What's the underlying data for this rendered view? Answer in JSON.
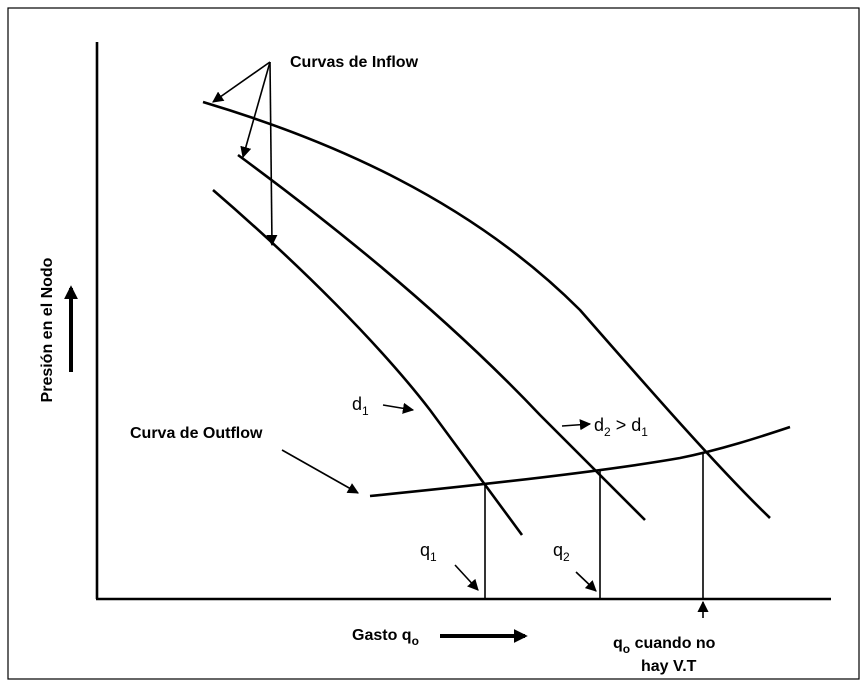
{
  "labels": {
    "inflow": "Curvas de Inflow",
    "y_axis": "Presión en el Nodo",
    "outflow": "Curva de Outflow",
    "d1": [
      "d",
      "1"
    ],
    "d2": [
      "d",
      "2",
      " > d",
      "1"
    ],
    "q1": [
      "q",
      "1"
    ],
    "q2": [
      "q",
      "2"
    ],
    "x_axis": [
      "Gasto q",
      "o"
    ],
    "qo_line1": [
      "q",
      "o",
      " cuando no"
    ],
    "qo_line2": "hay V.T"
  }
}
